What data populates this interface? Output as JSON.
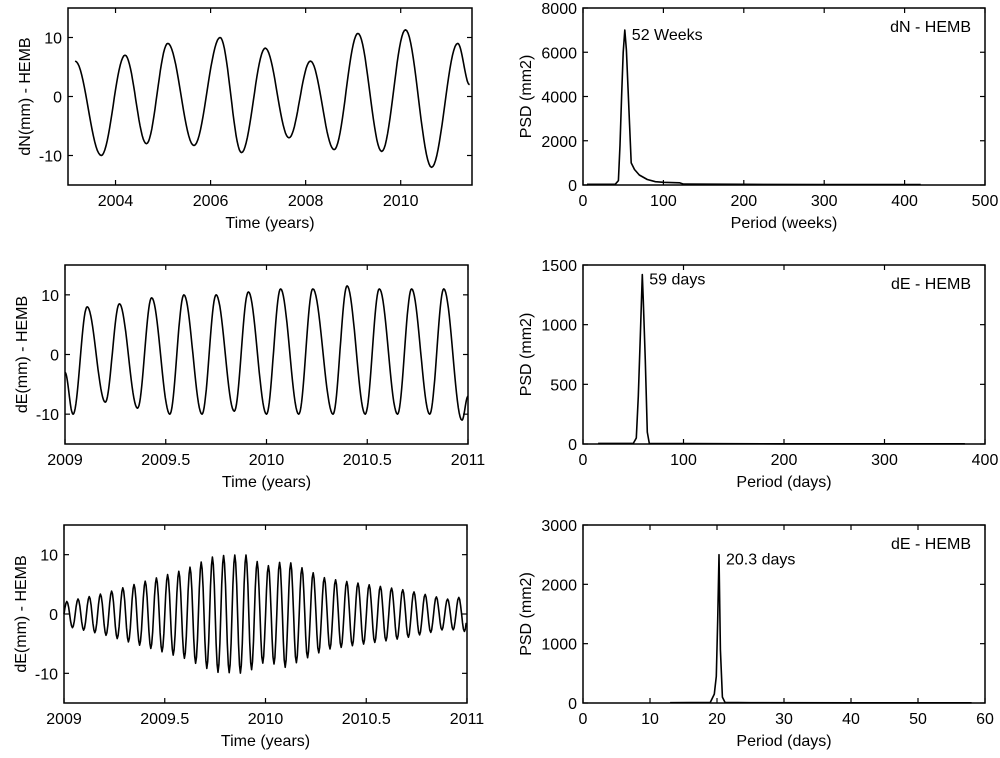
{
  "chart_data": [
    {
      "id": "dn-time",
      "type": "line",
      "xlabel": "Time (years)",
      "ylabel": "dN(mm) - HEMB",
      "xlim": [
        2003,
        2011.5
      ],
      "ylim": [
        -15,
        15
      ],
      "xticks": [
        2004,
        2006,
        2008,
        2010
      ],
      "yticks": [
        -10,
        0,
        10
      ],
      "xticklabels": [
        "2004",
        "2006",
        "2008",
        "2010"
      ],
      "yticklabels": [
        "-10",
        "0",
        "10"
      ],
      "extrema": {
        "x": [
          2003.15,
          2003.7,
          2004.2,
          2004.65,
          2005.1,
          2005.65,
          2006.2,
          2006.65,
          2007.15,
          2007.65,
          2008.1,
          2008.6,
          2009.1,
          2009.6,
          2010.1,
          2010.65,
          2011.2,
          2011.45
        ],
        "y": [
          6,
          -10,
          7,
          -8,
          9,
          -8.3,
          10,
          -9.5,
          8.2,
          -7,
          6,
          -9,
          10.7,
          -9.3,
          11.3,
          -12,
          9,
          2
        ]
      }
    },
    {
      "id": "dn-psd",
      "type": "line",
      "xlabel": "Period (weeks)",
      "ylabel": "PSD (mm2)",
      "title": "dN - HEMB",
      "annotation": {
        "text": "52 Weeks",
        "x": 52,
        "y": 7000
      },
      "xlim": [
        0,
        500
      ],
      "ylim": [
        0,
        8000
      ],
      "xticks": [
        0,
        100,
        200,
        300,
        400,
        500
      ],
      "yticks": [
        0,
        2000,
        4000,
        6000,
        8000
      ],
      "xticklabels": [
        "0",
        "100",
        "200",
        "300",
        "400",
        "500"
      ],
      "yticklabels": [
        "0",
        "2000",
        "4000",
        "6000",
        "8000"
      ],
      "x": [
        5,
        40,
        44,
        46,
        48,
        50,
        52,
        54,
        56,
        58,
        60,
        64,
        70,
        80,
        90,
        100,
        120,
        125,
        200,
        300,
        420
      ],
      "y": [
        30,
        30,
        200,
        1800,
        4000,
        6000,
        7000,
        6100,
        4400,
        2700,
        1000,
        700,
        450,
        250,
        150,
        120,
        100,
        40,
        30,
        20,
        20
      ]
    },
    {
      "id": "de-time-1",
      "type": "line",
      "xlabel": "Time (years)",
      "ylabel": "dE(mm) - HEMB",
      "xlim": [
        2009,
        2011
      ],
      "ylim": [
        -15,
        15
      ],
      "xticks": [
        2009,
        2009.5,
        2010,
        2010.5,
        2011
      ],
      "yticks": [
        -10,
        0,
        10
      ],
      "xticklabels": [
        "2009",
        "2009.5",
        "2010",
        "2010.5",
        "2011"
      ],
      "yticklabels": [
        "-10",
        "0",
        "10"
      ],
      "extrema": {
        "x": [
          2009.0,
          2009.04,
          2009.11,
          2009.2,
          2009.27,
          2009.36,
          2009.43,
          2009.52,
          2009.59,
          2009.68,
          2009.75,
          2009.84,
          2009.91,
          2010.0,
          2010.07,
          2010.16,
          2010.23,
          2010.33,
          2010.4,
          2010.49,
          2010.56,
          2010.65,
          2010.72,
          2010.81,
          2010.88,
          2010.97,
          2011.0
        ],
        "y": [
          -3,
          -10,
          8,
          -8,
          8.5,
          -9,
          9.5,
          -10,
          10,
          -10,
          10,
          -9.5,
          10.5,
          -10,
          11,
          -10,
          11,
          -10,
          11.5,
          -10,
          11,
          -10,
          11,
          -10,
          11,
          -11,
          -7
        ]
      }
    },
    {
      "id": "de-psd-1",
      "type": "line",
      "xlabel": "Period (days)",
      "ylabel": "PSD (mm2)",
      "title": "dE - HEMB",
      "annotation": {
        "text": "59 days",
        "x": 59,
        "y": 1420
      },
      "xlim": [
        0,
        400
      ],
      "ylim": [
        0,
        1500
      ],
      "xticks": [
        0,
        100,
        200,
        300,
        400
      ],
      "yticks": [
        0,
        500,
        1000,
        1500
      ],
      "xticklabels": [
        "0",
        "100",
        "200",
        "300",
        "400"
      ],
      "yticklabels": [
        "0",
        "500",
        "1000",
        "1500"
      ],
      "x": [
        15,
        50,
        53,
        55,
        57,
        59,
        60,
        62,
        64,
        66,
        100,
        200,
        300,
        380
      ],
      "y": [
        5,
        5,
        50,
        400,
        900,
        1420,
        1200,
        700,
        100,
        5,
        3,
        2,
        2,
        2
      ]
    },
    {
      "id": "de-time-2",
      "type": "line",
      "xlabel": "Time (years)",
      "ylabel": "dE(mm) - HEMB",
      "xlim": [
        2009,
        2011
      ],
      "ylim": [
        -15,
        15
      ],
      "xticks": [
        2009,
        2009.5,
        2010,
        2010.5,
        2011
      ],
      "yticks": [
        -10,
        0,
        10
      ],
      "xticklabels": [
        "2009",
        "2009.5",
        "2010",
        "2010.5",
        "2011"
      ],
      "yticklabels": [
        "-10",
        "0",
        "10"
      ],
      "period_days": 20.3,
      "envelope": {
        "x": [
          2009,
          2009.2,
          2009.4,
          2009.6,
          2009.75,
          2009.9,
          2010.0,
          2010.1,
          2010.3,
          2010.5,
          2010.7,
          2010.9,
          2011
        ],
        "y": [
          2,
          3.5,
          5.5,
          7.5,
          9.8,
          10,
          8,
          9,
          6,
          5,
          4,
          2.5,
          3
        ]
      }
    },
    {
      "id": "de-psd-2",
      "type": "line",
      "xlabel": "Period (days)",
      "ylabel": "PSD (mm2)",
      "title": "dE - HEMB",
      "annotation": {
        "text": "20.3 days",
        "x": 20.3,
        "y": 2500
      },
      "xlim": [
        0,
        60
      ],
      "ylim": [
        0,
        3000
      ],
      "xticks": [
        0,
        10,
        20,
        30,
        40,
        50,
        60
      ],
      "yticks": [
        0,
        1000,
        2000,
        3000
      ],
      "xticklabels": [
        "0",
        "10",
        "20",
        "30",
        "40",
        "50",
        "60"
      ],
      "yticklabels": [
        "0",
        "1000",
        "2000",
        "3000"
      ],
      "x": [
        13,
        19,
        19.6,
        19.9,
        20.1,
        20.3,
        20.5,
        20.8,
        21.2,
        25,
        40,
        58
      ],
      "y": [
        5,
        10,
        150,
        450,
        1400,
        2500,
        900,
        100,
        10,
        5,
        3,
        3
      ]
    }
  ]
}
